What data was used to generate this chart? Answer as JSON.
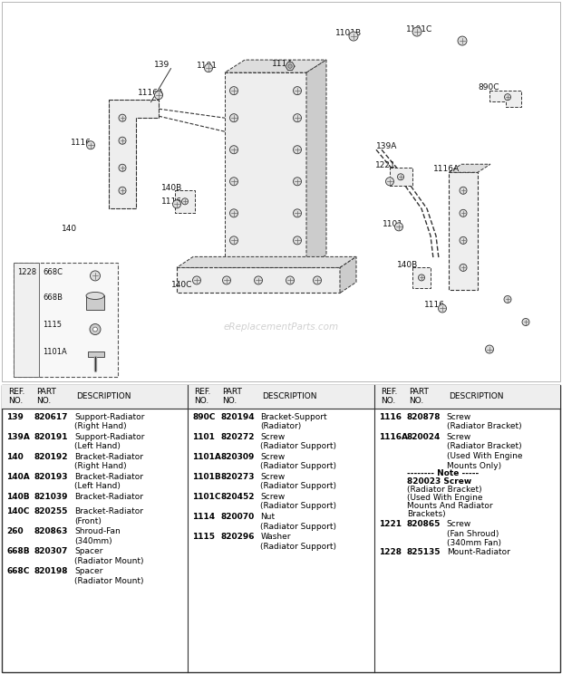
{
  "bg_color": "#ffffff",
  "watermark": "eReplacementParts.com",
  "col1_rows": [
    [
      "139",
      "820617",
      "Support-Radiator\n(Right Hand)"
    ],
    [
      "139A",
      "820191",
      "Support-Radiator\n(Left Hand)"
    ],
    [
      "140",
      "820192",
      "Bracket-Radiator\n(Right Hand)"
    ],
    [
      "140A",
      "820193",
      "Bracket-Radiator\n(Left Hand)"
    ],
    [
      "140B",
      "821039",
      "Bracket-Radiator"
    ],
    [
      "140C",
      "820255",
      "Bracket-Radiator\n(Front)"
    ],
    [
      "260",
      "820863",
      "Shroud-Fan\n(340mm)"
    ],
    [
      "668B",
      "820307",
      "Spacer\n(Radiator Mount)"
    ],
    [
      "668C",
      "820198",
      "Spacer\n(Radiator Mount)"
    ]
  ],
  "col2_rows": [
    [
      "890C",
      "820194",
      "Bracket-Support\n(Radiator)"
    ],
    [
      "1101",
      "820272",
      "Screw\n(Radiator Support)"
    ],
    [
      "1101A",
      "820309",
      "Screw\n(Radiator Support)"
    ],
    [
      "1101B",
      "820273",
      "Screw\n(Radiator Support)"
    ],
    [
      "1101C",
      "820452",
      "Screw\n(Radiator Support)"
    ],
    [
      "1114",
      "820070",
      "Nut\n(Radiator Support)"
    ],
    [
      "1115",
      "820296",
      "Washer\n(Radiator Support)"
    ]
  ],
  "col3_rows": [
    [
      "1116",
      "820878",
      "Screw\n(Radiator Bracket)"
    ],
    [
      "1116A",
      "820024",
      "Screw\n(Radiator Bracket)\n(Used With Engine\nMounts Only)"
    ],
    [
      "NOTE",
      "",
      "-------- Note -----\n820023 Screw\n(Radiator Bracket)\n(Used With Engine\nMounts And Radiator\nBrackets)"
    ],
    [
      "1221",
      "820865",
      "Screw\n(Fan Shroud)\n(340mm Fan)"
    ],
    [
      "1228",
      "825135",
      "Mount-Radiator"
    ]
  ]
}
